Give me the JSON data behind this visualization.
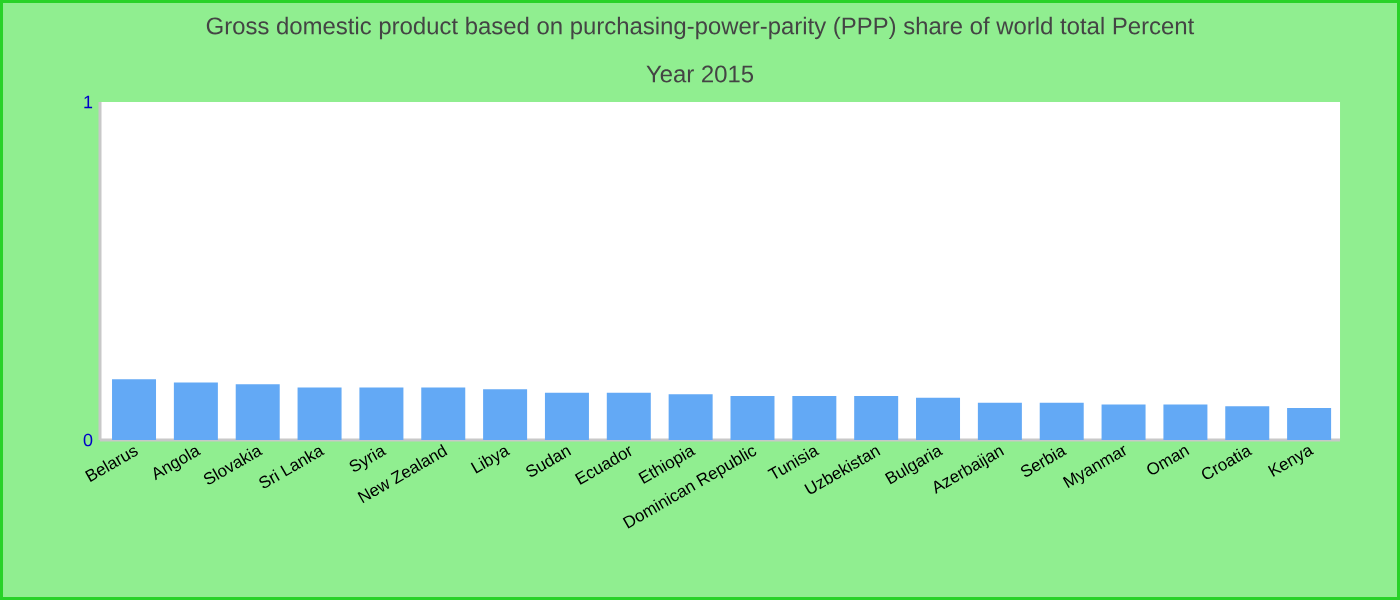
{
  "chart_data": {
    "type": "bar",
    "title": "Gross domestic product based on purchasing-power-parity (PPP) share of world total  Percent",
    "subtitle": "Year 2015",
    "categories": [
      "Belarus",
      "Angola",
      "Slovakia",
      "Sri Lanka",
      "Syria",
      "New Zealand",
      "Libya",
      "Sudan",
      "Ecuador",
      "Ethiopia",
      "Dominican Republic",
      "Tunisia",
      "Uzbekistan",
      "Bulgaria",
      "Azerbaijan",
      "Serbia",
      "Myanmar",
      "Oman",
      "Croatia",
      "Kenya"
    ],
    "values": [
      0.18,
      0.17,
      0.165,
      0.155,
      0.155,
      0.155,
      0.15,
      0.14,
      0.14,
      0.135,
      0.13,
      0.13,
      0.13,
      0.125,
      0.11,
      0.11,
      0.105,
      0.105,
      0.1,
      0.095
    ],
    "color": "#63a9f5",
    "ylim": [
      0,
      1
    ],
    "yticks": [
      0,
      1
    ],
    "grid": false
  }
}
